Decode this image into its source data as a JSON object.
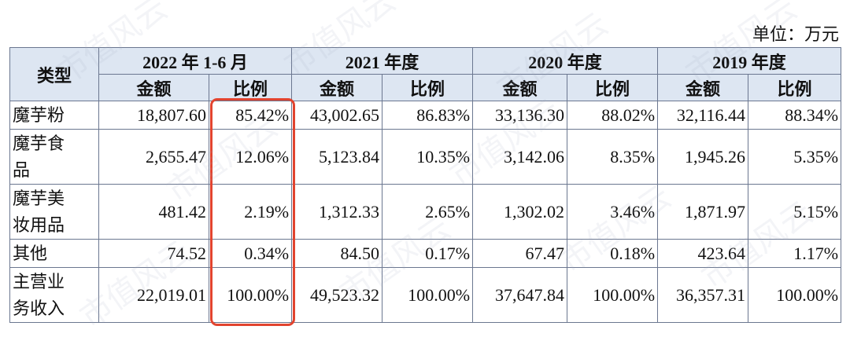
{
  "unit": "单位：万元",
  "watermark": "市值风云",
  "table": {
    "header": [
      "类型",
      "2022 年 1-6 月",
      "2021 年度",
      "2020 年度",
      "2019 年度"
    ],
    "subheader": [
      "金额",
      "比例",
      "金额",
      "比例",
      "金额",
      "比例",
      "金额",
      "比例"
    ],
    "rows": [
      [
        "魔芋粉",
        "18,807.60",
        "85.42%",
        "43,002.65",
        "86.83%",
        "33,136.30",
        "88.02%",
        "32,116.44",
        "88.34%"
      ],
      [
        "魔芋食品",
        "2,655.47",
        "12.06%",
        "5,123.84",
        "10.35%",
        "3,142.06",
        "8.35%",
        "1,945.26",
        "5.35%"
      ],
      [
        "魔芋美妆用品",
        "481.42",
        "2.19%",
        "1,312.33",
        "2.65%",
        "1,302.02",
        "3.46%",
        "1,871.97",
        "5.15%"
      ],
      [
        "其他",
        "74.52",
        "0.34%",
        "84.50",
        "0.17%",
        "67.47",
        "0.18%",
        "423.64",
        "1.17%"
      ],
      [
        "主营业务收入",
        "22,019.01",
        "100.00%",
        "49,523.32",
        "100.00%",
        "37,647.84",
        "100.00%",
        "36,357.31",
        "100.00%"
      ]
    ]
  }
}
